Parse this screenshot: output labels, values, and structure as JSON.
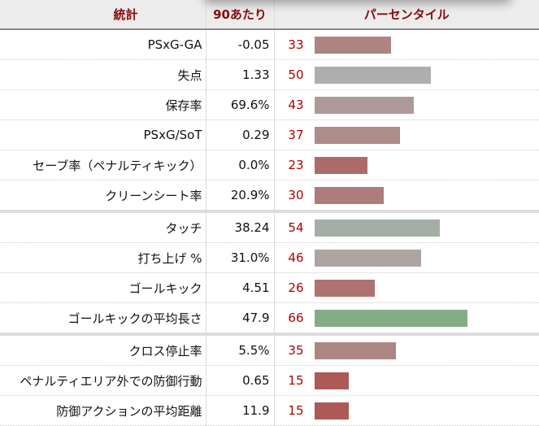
{
  "header": {
    "stat": "統計",
    "per90": "90あたり",
    "percentile": "パーセンタイル"
  },
  "rows": [
    {
      "stat": "PSxG-GA",
      "value": "-0.05",
      "percentile": 33,
      "color": "#ad8482",
      "sep": false
    },
    {
      "stat": "失点",
      "value": "1.33",
      "percentile": 50,
      "color": "#aeaeae",
      "sep": false
    },
    {
      "stat": "保存率",
      "value": "69.6%",
      "percentile": 43,
      "color": "#ad9a98",
      "sep": false
    },
    {
      "stat": "PSxG/SoT",
      "value": "0.29",
      "percentile": 37,
      "color": "#ad8c8a",
      "sep": false
    },
    {
      "stat": "セーブ率（ペナルティキック）",
      "value": "0.0%",
      "percentile": 23,
      "color": "#ad6b68",
      "sep": false
    },
    {
      "stat": "クリーンシート率",
      "value": "20.9%",
      "percentile": 30,
      "color": "#ad7b79",
      "sep": true
    },
    {
      "stat": "タッチ",
      "value": "38.24",
      "percentile": 54,
      "color": "#a5aea5",
      "sep": false
    },
    {
      "stat": "打ち上げ %",
      "value": "31.0%",
      "percentile": 46,
      "color": "#afa3a2",
      "sep": false
    },
    {
      "stat": "ゴールキック",
      "value": "4.51",
      "percentile": 26,
      "color": "#ae7371",
      "sep": false
    },
    {
      "stat": "ゴールキックの平均長さ",
      "value": "47.9",
      "percentile": 66,
      "color": "#85ad85",
      "sep": true
    },
    {
      "stat": "クロス停止率",
      "value": "5.5%",
      "percentile": 35,
      "color": "#ad8684",
      "sep": false
    },
    {
      "stat": "ペナルティエリア外での防御行動",
      "value": "0.65",
      "percentile": 15,
      "color": "#ad5955",
      "sep": false
    },
    {
      "stat": "防御アクションの平均距離",
      "value": "11.9",
      "percentile": 15,
      "color": "#ad5955",
      "sep": false
    }
  ]
}
